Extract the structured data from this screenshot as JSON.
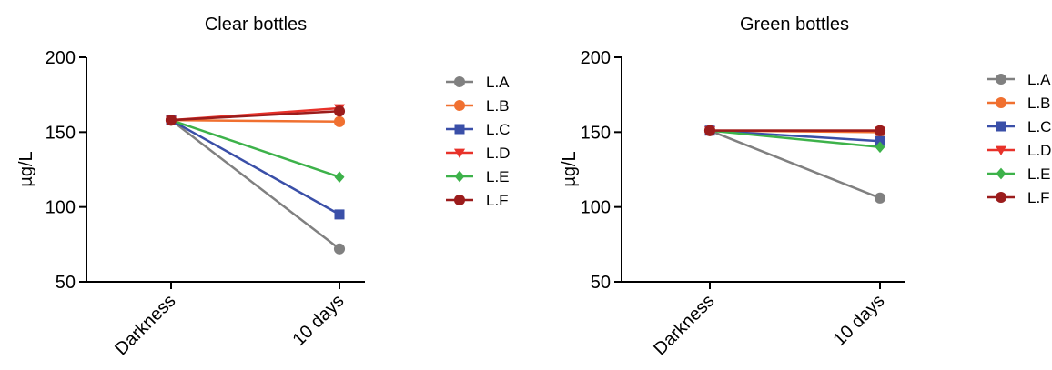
{
  "chart_data": [
    {
      "type": "line",
      "title": "Clear bottles",
      "xlabel": "",
      "ylabel": "µg/L",
      "categories": [
        "Darkness",
        "10 days"
      ],
      "ylim": [
        50,
        200
      ],
      "yticks": [
        "50",
        "100",
        "150",
        "200"
      ],
      "grid": false,
      "legend_position": "right",
      "series": [
        {
          "name": "L.A",
          "values": [
            158,
            72
          ],
          "color": "#808080",
          "marker": "circle"
        },
        {
          "name": "L.B",
          "values": [
            158,
            157
          ],
          "color": "#f07030",
          "marker": "circle"
        },
        {
          "name": "L.C",
          "values": [
            158,
            95
          ],
          "color": "#3a4fa8",
          "marker": "square"
        },
        {
          "name": "L.D",
          "values": [
            158,
            166
          ],
          "color": "#e8322a",
          "marker": "triangle-down"
        },
        {
          "name": "L.E",
          "values": [
            158,
            120
          ],
          "color": "#3db24a",
          "marker": "diamond"
        },
        {
          "name": "L.F",
          "values": [
            158,
            164
          ],
          "color": "#9b1c1c",
          "marker": "circle"
        }
      ]
    },
    {
      "type": "line",
      "title": "Green bottles",
      "xlabel": "",
      "ylabel": "µg/L",
      "categories": [
        "Darkness",
        "10 days"
      ],
      "ylim": [
        50,
        200
      ],
      "yticks": [
        "50",
        "100",
        "150",
        "200"
      ],
      "grid": false,
      "legend_position": "right",
      "series": [
        {
          "name": "L.A",
          "values": [
            151,
            106
          ],
          "color": "#808080",
          "marker": "circle"
        },
        {
          "name": "L.B",
          "values": [
            151,
            150
          ],
          "color": "#f07030",
          "marker": "circle"
        },
        {
          "name": "L.C",
          "values": [
            151,
            144
          ],
          "color": "#3a4fa8",
          "marker": "square"
        },
        {
          "name": "L.D",
          "values": [
            151,
            151
          ],
          "color": "#e8322a",
          "marker": "triangle-down"
        },
        {
          "name": "L.E",
          "values": [
            151,
            140
          ],
          "color": "#3db24a",
          "marker": "diamond"
        },
        {
          "name": "L.F",
          "values": [
            151,
            151
          ],
          "color": "#9b1c1c",
          "marker": "circle"
        }
      ]
    }
  ]
}
